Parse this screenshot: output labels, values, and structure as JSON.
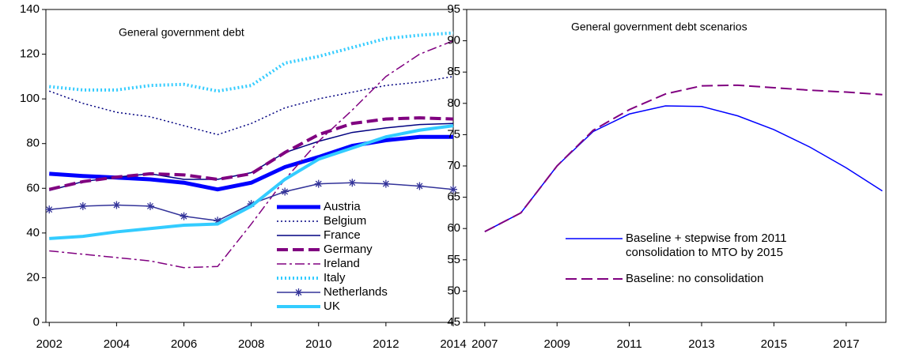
{
  "chart_data": [
    {
      "type": "line",
      "annotation": "General government debt",
      "x": [
        2002,
        2003,
        2004,
        2005,
        2006,
        2007,
        2008,
        2009,
        2010,
        2011,
        2012,
        2013,
        2014
      ],
      "xlim": [
        2001.9,
        2014.0
      ],
      "xticks": [
        2002,
        2004,
        2006,
        2008,
        2010,
        2012,
        2014
      ],
      "ylim": [
        0,
        140
      ],
      "yticks": [
        0,
        20,
        40,
        60,
        80,
        100,
        120,
        140
      ],
      "grid": false,
      "legend": "lower right",
      "series": [
        {
          "name": "Austria",
          "color": "#0000ff",
          "line_style": "solid",
          "line_width": 5,
          "values": [
            66.5,
            65.5,
            64.8,
            64,
            62.5,
            59.5,
            62.5,
            69.5,
            74,
            79,
            81.5,
            83,
            83
          ]
        },
        {
          "name": "Belgium",
          "color": "#000080",
          "line_style": "dotted",
          "line_width": 1.5,
          "values": [
            103.5,
            98,
            94,
            92,
            88,
            84,
            89,
            96,
            100,
            103,
            106,
            107.5,
            110
          ]
        },
        {
          "name": "France",
          "color": "#000080",
          "line_style": "solid",
          "line_width": 1.5,
          "values": [
            59,
            63,
            65,
            66.5,
            64,
            64,
            67,
            76,
            81,
            85,
            87,
            88.5,
            89
          ]
        },
        {
          "name": "Germany",
          "color": "#800080",
          "line_style": "dashed",
          "line_width": 4,
          "values": [
            59.5,
            63,
            65,
            66.5,
            66,
            64,
            66.5,
            76,
            84,
            89,
            91,
            91.5,
            91
          ]
        },
        {
          "name": "Ireland",
          "color": "#800080",
          "line_style": "dashdot",
          "line_width": 1.5,
          "values": [
            32,
            30.5,
            29,
            27.5,
            24.5,
            25,
            44,
            64,
            81,
            95,
            110,
            120,
            126
          ]
        },
        {
          "name": "Italy",
          "color": "#33ccff",
          "line_style": "dotted",
          "line_width": 4,
          "values": [
            105.5,
            104,
            104,
            106,
            106.5,
            103.5,
            106,
            116,
            119,
            123,
            127,
            128.5,
            129.5
          ]
        },
        {
          "name": "Netherlands",
          "color": "#333399",
          "line_style": "solid",
          "line_width": 1.5,
          "marker": "asterisk",
          "values": [
            50.5,
            52,
            52.5,
            52,
            47.5,
            45.5,
            53,
            58.5,
            62,
            62.5,
            62,
            61,
            59.5
          ]
        },
        {
          "name": "UK",
          "color": "#33ccff",
          "line_style": "solid",
          "line_width": 4,
          "values": [
            37.5,
            38.5,
            40.5,
            42,
            43.5,
            44,
            52,
            64,
            73,
            78,
            83,
            86,
            88
          ]
        }
      ]
    },
    {
      "type": "line",
      "annotation": "General government debt scenarios",
      "x": [
        2007,
        2008,
        2009,
        2010,
        2011,
        2012,
        2013,
        2014,
        2015,
        2016,
        2017,
        2018
      ],
      "xlim": [
        2006.5,
        2018.1
      ],
      "xticks": [
        2007,
        2009,
        2011,
        2013,
        2015,
        2017
      ],
      "ylim": [
        45,
        95
      ],
      "yticks": [
        45,
        50,
        55,
        60,
        65,
        70,
        75,
        80,
        85,
        90,
        95
      ],
      "grid": false,
      "legend": "lower center",
      "series": [
        {
          "name": "Baseline + stepwise from 2011\nconsolidation to MTO by 2015",
          "color": "#0000ff",
          "line_style": "solid",
          "line_width": 1.5,
          "values": [
            59.5,
            62.5,
            70,
            75.5,
            78.3,
            79.6,
            79.5,
            78,
            75.8,
            73,
            69.7,
            66
          ]
        },
        {
          "name": "Baseline: no consolidation",
          "color": "#800080",
          "line_style": "dashed",
          "line_width": 2,
          "values": [
            59.5,
            62.5,
            70,
            75.7,
            79,
            81.5,
            82.8,
            82.9,
            82.5,
            82.1,
            81.8,
            81.4
          ]
        }
      ]
    }
  ]
}
